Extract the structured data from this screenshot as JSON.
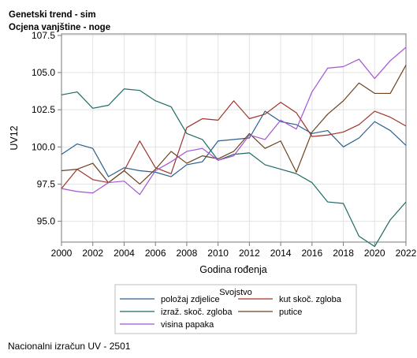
{
  "chart_data": {
    "type": "line",
    "title": "Genetski trend - sim",
    "subtitle": "Ocjena vanjštine - noge",
    "xlabel": "Godina rođenja",
    "ylabel": "UV12",
    "xlim": [
      2000,
      2022
    ],
    "ylim": [
      93.6,
      107.6
    ],
    "x_ticks": [
      "2000",
      "2002",
      "2004",
      "2006",
      "2008",
      "2010",
      "2012",
      "2014",
      "2016",
      "2018",
      "2020",
      "2022"
    ],
    "y_ticks": [
      "95.0",
      "97.5",
      "100.0",
      "102.5",
      "105.0",
      "107.5"
    ],
    "grid": true,
    "legend_title": "Svojstvo",
    "legend_placement": "bottom",
    "x": [
      2000,
      2001,
      2002,
      2003,
      2004,
      2005,
      2006,
      2007,
      2008,
      2009,
      2010,
      2011,
      2012,
      2013,
      2014,
      2015,
      2016,
      2017,
      2018,
      2019,
      2020,
      2021,
      2022
    ],
    "series": [
      {
        "name": "položaj zdjelice",
        "color": "#2a5f8f",
        "values": [
          99.5,
          100.2,
          99.9,
          98.0,
          98.6,
          98.4,
          98.3,
          98.0,
          98.8,
          99.0,
          100.4,
          100.5,
          100.6,
          102.4,
          101.7,
          101.5,
          100.9,
          101.1,
          100.0,
          100.6,
          101.7,
          101.1,
          100.1
        ]
      },
      {
        "name": "kut skoč. zgloba",
        "color": "#a0342c",
        "values": [
          97.2,
          98.5,
          97.8,
          97.6,
          98.4,
          100.4,
          98.6,
          98.2,
          101.3,
          101.9,
          101.8,
          103.1,
          101.9,
          102.2,
          103.0,
          102.3,
          100.7,
          100.8,
          101.0,
          101.5,
          102.4,
          102.0,
          101.4
        ]
      },
      {
        "name": "izraž. skoč. zgloba",
        "color": "#1e6b64",
        "values": [
          103.5,
          103.7,
          102.6,
          102.8,
          103.9,
          103.8,
          103.1,
          102.7,
          100.9,
          100.5,
          99.1,
          99.5,
          99.6,
          98.8,
          98.5,
          98.2,
          97.6,
          96.3,
          96.2,
          94.0,
          93.3,
          95.1,
          96.3
        ]
      },
      {
        "name": "putice",
        "color": "#6b4320",
        "values": [
          98.4,
          98.5,
          98.9,
          97.6,
          98.4,
          97.5,
          98.5,
          99.7,
          98.9,
          99.4,
          99.2,
          99.7,
          100.9,
          99.9,
          100.4,
          98.3,
          101.0,
          102.2,
          103.1,
          104.3,
          103.6,
          103.6,
          105.5
        ]
      },
      {
        "name": "visina papaka",
        "color": "#a454d2",
        "values": [
          97.2,
          97.0,
          96.9,
          97.6,
          97.7,
          96.8,
          98.4,
          99.0,
          99.7,
          99.9,
          99.1,
          99.4,
          100.8,
          100.5,
          101.8,
          101.2,
          103.7,
          105.3,
          105.4,
          105.9,
          104.6,
          105.8,
          106.7
        ]
      }
    ],
    "footnote": "Nacionalni izračun UV - 2501"
  }
}
